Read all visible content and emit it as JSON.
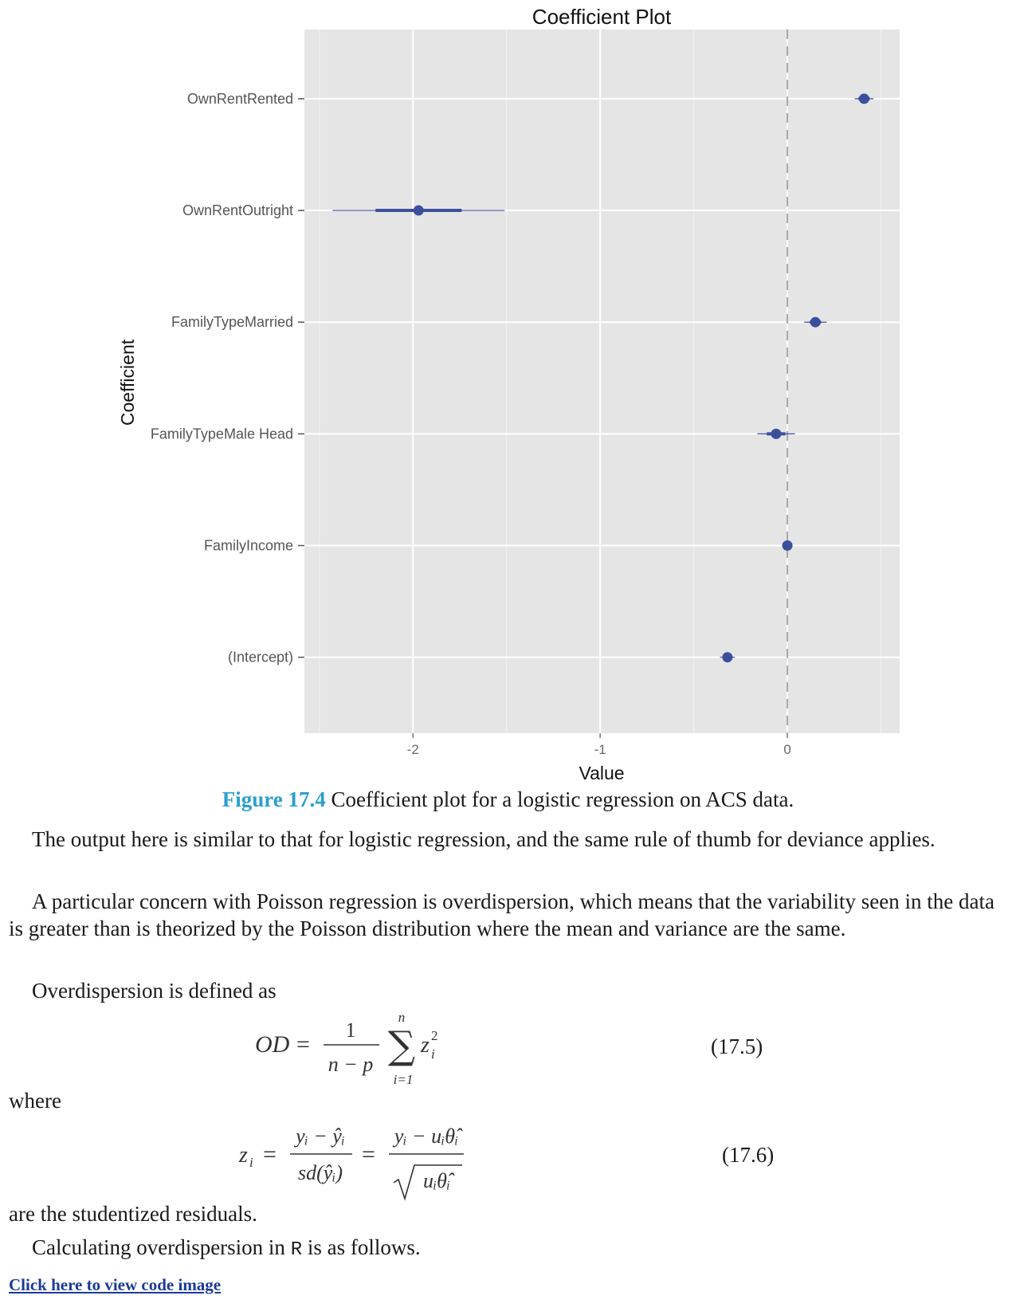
{
  "chart_data": {
    "type": "scatter",
    "subtype": "coefficient-plot",
    "title": "Coefficient Plot",
    "xlabel": "Value",
    "ylabel": "Coefficient",
    "xlim": [
      -2.58,
      0.6
    ],
    "x_ticks": [
      -2,
      -1,
      0
    ],
    "x_tick_labels": [
      "-2",
      "-1",
      "0"
    ],
    "reference_line": 0,
    "grid": true,
    "colors": {
      "point": "#3b4f9c",
      "panel": "#e5e5e5",
      "grid": "#ffffff",
      "refline": "#a8a8a8"
    },
    "points": [
      {
        "label": "OwnRentRented",
        "value": 0.41,
        "inner": [
          0.38,
          0.44
        ],
        "outer": [
          0.36,
          0.46
        ]
      },
      {
        "label": "OwnRentOutright",
        "value": -1.97,
        "inner": [
          -2.2,
          -1.74
        ],
        "outer": [
          -2.43,
          -1.51
        ]
      },
      {
        "label": "FamilyTypeMarried",
        "value": 0.15,
        "inner": [
          0.12,
          0.18
        ],
        "outer": [
          0.09,
          0.21
        ]
      },
      {
        "label": "FamilyTypeMale Head",
        "value": -0.06,
        "inner": [
          -0.11,
          -0.01
        ],
        "outer": [
          -0.16,
          0.04
        ]
      },
      {
        "label": "FamilyIncome",
        "value": 0.0,
        "inner": [
          0.0,
          0.0
        ],
        "outer": [
          0.0,
          0.0
        ]
      },
      {
        "label": "(Intercept)",
        "value": -0.32,
        "inner": [
          -0.34,
          -0.3
        ],
        "outer": [
          -0.36,
          -0.28
        ]
      }
    ]
  },
  "caption": {
    "figure_number": "Figure 17.4",
    "text": " Coefficient plot for a logistic regression on ACS data."
  },
  "paragraphs": {
    "p1": "The output here is similar to that for logistic regression, and the same rule of thumb for deviance applies.",
    "p2": "A particular concern with Poisson regression is overdispersion, which means that the variability seen in the data is greater than is theorized by the Poisson distribution where the mean and variance are the same.",
    "p3": "Overdispersion is defined as",
    "p4": "where",
    "p5": "are the studentized residuals.",
    "p6_before": "Calculating overdispersion in ",
    "p6_code": "R",
    "p6_after": " is as follows."
  },
  "equations": {
    "eq1_number": "(17.5)",
    "eq2_number": "(17.6)"
  },
  "link": {
    "label": "Click here to view code image"
  }
}
